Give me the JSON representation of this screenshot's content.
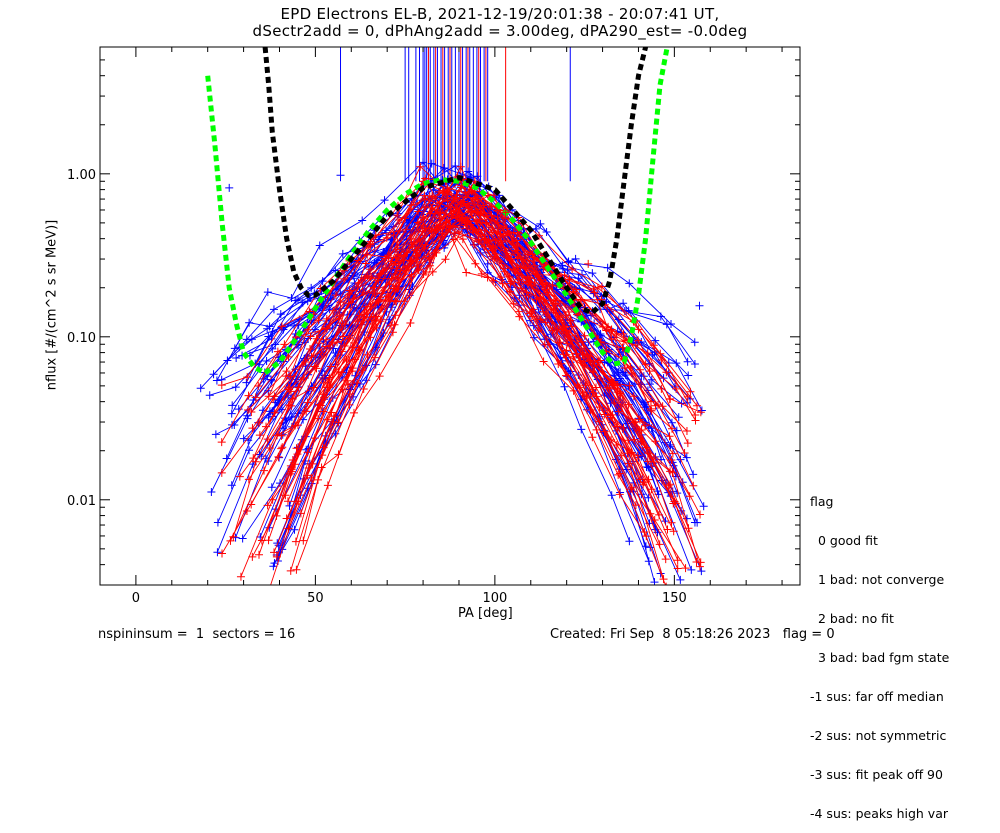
{
  "window": {
    "title_line1": "EPD Electrons EL-B, 2021-12-19/20:01:38 - 20:07:41 UT,",
    "title_line2": "dSectr2add = 0, dPhAng2add = 3.00deg, dPA290_est=  -0.0deg"
  },
  "legend": {
    "title": "flag",
    "items": [
      "0 good fit",
      "1 bad: not converge",
      "2 bad: no fit",
      "3 bad: bad fgm state",
      "-1 sus: far off median",
      "-2 sus: not symmetric",
      "-3 sus: fit peak off 90",
      "-4 sus: peaks high var"
    ]
  },
  "footer": {
    "left": "nspininsum =  1  sectors = 16",
    "right": "Created: Fri Sep  8 05:18:26 2023   flag = 0"
  },
  "chart_data": {
    "type": "line",
    "xlabel": "PA [deg]",
    "ylabel": "nflux [#/(cm^2 s sr MeV)]",
    "xlim": [
      -10,
      185
    ],
    "ylim": [
      0.003,
      6
    ],
    "yscale": "log",
    "xticks": [
      0,
      50,
      100,
      150
    ],
    "yticks": [
      0.01,
      0.1,
      1.0
    ],
    "ytick_labels": [
      "0.01",
      "0.10",
      "1.00"
    ],
    "colors": {
      "blue": "#0000ff",
      "red": "#ff0000",
      "green": "#00ff00",
      "black": "#000000"
    },
    "vertical_markers": {
      "top": 6,
      "bottom": 0.9,
      "blue_x": [
        57,
        75,
        76,
        78,
        79,
        80,
        80.5,
        81,
        82,
        83,
        84,
        85,
        86,
        87,
        88,
        89,
        90,
        91,
        92,
        93,
        94,
        95,
        96,
        97,
        98,
        121
      ],
      "red_x": [
        81.5,
        83.5,
        85.5,
        87.5,
        90.5,
        92.5,
        95.5,
        97.5,
        103
      ]
    },
    "series": [
      {
        "color": "green",
        "style": "dashed-thick",
        "x": [
          20,
          22,
          24,
          26,
          28,
          30,
          33,
          36,
          40,
          45,
          50,
          55,
          60,
          65,
          70,
          75,
          80,
          85,
          90,
          95,
          100,
          105,
          110,
          115,
          120,
          125,
          130,
          133,
          136,
          138,
          140,
          142,
          144,
          146,
          148
        ],
        "y": [
          4.0,
          1.5,
          0.5,
          0.2,
          0.12,
          0.08,
          0.065,
          0.06,
          0.07,
          0.1,
          0.15,
          0.22,
          0.32,
          0.45,
          0.6,
          0.75,
          0.87,
          0.92,
          0.9,
          0.82,
          0.67,
          0.52,
          0.38,
          0.26,
          0.18,
          0.12,
          0.08,
          0.068,
          0.07,
          0.1,
          0.18,
          0.4,
          1.2,
          3.5,
          6.0
        ]
      },
      {
        "color": "black",
        "style": "dashed-thick",
        "x": [
          36,
          37,
          38,
          40,
          42,
          44,
          46,
          48,
          50,
          55,
          60,
          70,
          80,
          90,
          100,
          110,
          120,
          124,
          127,
          130,
          132,
          134,
          136,
          138,
          140,
          142
        ],
        "y": [
          6.0,
          3.5,
          1.8,
          0.8,
          0.4,
          0.25,
          0.2,
          0.18,
          0.18,
          0.22,
          0.3,
          0.55,
          0.82,
          0.95,
          0.8,
          0.45,
          0.2,
          0.15,
          0.14,
          0.16,
          0.22,
          0.4,
          0.9,
          2.0,
          4.0,
          6.0
        ]
      }
    ],
    "trace_sets": [
      {
        "color": "blue",
        "count": 55,
        "seed": 11,
        "x": [
          20,
          158
        ],
        "peak_x": [
          82,
          97
        ],
        "peak_y": [
          0.55,
          1.1
        ],
        "floor_y": [
          0.003,
          0.09
        ]
      },
      {
        "color": "red",
        "count": 45,
        "seed": 29,
        "x": [
          24,
          158
        ],
        "peak_x": [
          80,
          96
        ],
        "peak_y": [
          0.5,
          1.05
        ],
        "floor_y": [
          0.003,
          0.05
        ]
      }
    ],
    "outlier_points": [
      {
        "x": 157,
        "y": 0.155,
        "color": "blue"
      },
      {
        "x": 57,
        "y": 0.98,
        "color": "blue"
      },
      {
        "x": 26,
        "y": 0.82,
        "color": "blue"
      },
      {
        "x": 98,
        "y": 0.28,
        "color": "blue"
      },
      {
        "x": 103,
        "y": 0.58,
        "color": "red"
      },
      {
        "x": 126,
        "y": 0.28,
        "color": "red"
      }
    ]
  }
}
